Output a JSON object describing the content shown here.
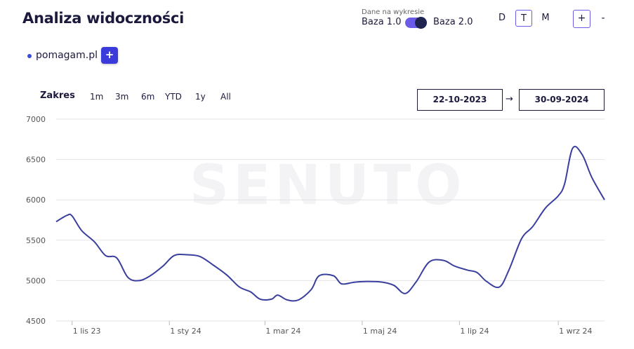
{
  "header": {
    "title": "Analiza widoczności",
    "base_caption": "Dane na wykresie",
    "base_left": "Baza 1.0",
    "base_right": "Baza 2.0",
    "granularity": [
      "D",
      "T",
      "M"
    ],
    "granularity_active": "T",
    "zoom_in": "+",
    "zoom_out": "-"
  },
  "domain": {
    "name": "pomagam.pl",
    "add_label": "+",
    "color": "#3b4bd8"
  },
  "range": {
    "label": "Zakres",
    "buttons": [
      "1m",
      "3m",
      "6m",
      "YTD",
      "1y",
      "All"
    ],
    "date_from": "22-10-2023",
    "date_to": "30-09-2024",
    "arrow": "→"
  },
  "watermark": "SENUTO",
  "chart_data": {
    "type": "line",
    "title": "",
    "xlabel": "",
    "ylabel": "",
    "ylim": [
      4500,
      7000
    ],
    "yticks": [
      4500,
      5000,
      5500,
      6000,
      6500,
      7000
    ],
    "xlim": [
      "2023-10-22",
      "2024-09-30"
    ],
    "xticks": [
      {
        "date": "2023-11-01",
        "label": "1 lis 23"
      },
      {
        "date": "2024-01-01",
        "label": "1 sty 24"
      },
      {
        "date": "2024-03-01",
        "label": "1 mar 24"
      },
      {
        "date": "2024-05-01",
        "label": "1 maj 24"
      },
      {
        "date": "2024-07-01",
        "label": "1 lip 24"
      },
      {
        "date": "2024-09-01",
        "label": "1 wrz 24"
      }
    ],
    "grid": true,
    "series": [
      {
        "color": "#3a3f9e",
        "points": [
          [
            "2023-10-22",
            5730
          ],
          [
            "2023-10-29",
            5810
          ],
          [
            "2023-11-01",
            5800
          ],
          [
            "2023-11-07",
            5620
          ],
          [
            "2023-11-15",
            5480
          ],
          [
            "2023-11-22",
            5310
          ],
          [
            "2023-11-29",
            5280
          ],
          [
            "2023-12-06",
            5040
          ],
          [
            "2023-12-13",
            5000
          ],
          [
            "2023-12-20",
            5060
          ],
          [
            "2023-12-28",
            5180
          ],
          [
            "2024-01-04",
            5310
          ],
          [
            "2024-01-12",
            5320
          ],
          [
            "2024-01-20",
            5300
          ],
          [
            "2024-01-28",
            5200
          ],
          [
            "2024-02-06",
            5070
          ],
          [
            "2024-02-14",
            4920
          ],
          [
            "2024-02-21",
            4860
          ],
          [
            "2024-02-27",
            4770
          ],
          [
            "2024-03-05",
            4770
          ],
          [
            "2024-03-09",
            4820
          ],
          [
            "2024-03-15",
            4760
          ],
          [
            "2024-03-22",
            4760
          ],
          [
            "2024-03-30",
            4890
          ],
          [
            "2024-04-04",
            5060
          ],
          [
            "2024-04-13",
            5060
          ],
          [
            "2024-04-18",
            4960
          ],
          [
            "2024-04-26",
            4980
          ],
          [
            "2024-05-04",
            4990
          ],
          [
            "2024-05-14",
            4980
          ],
          [
            "2024-05-21",
            4940
          ],
          [
            "2024-05-28",
            4840
          ],
          [
            "2024-06-04",
            4990
          ],
          [
            "2024-06-12",
            5230
          ],
          [
            "2024-06-21",
            5250
          ],
          [
            "2024-06-28",
            5180
          ],
          [
            "2024-07-06",
            5130
          ],
          [
            "2024-07-12",
            5100
          ],
          [
            "2024-07-18",
            4990
          ],
          [
            "2024-07-26",
            4920
          ],
          [
            "2024-08-01",
            5130
          ],
          [
            "2024-08-09",
            5520
          ],
          [
            "2024-08-16",
            5670
          ],
          [
            "2024-08-24",
            5900
          ],
          [
            "2024-09-01",
            6050
          ],
          [
            "2024-09-05",
            6200
          ],
          [
            "2024-09-10",
            6640
          ],
          [
            "2024-09-16",
            6560
          ],
          [
            "2024-09-22",
            6280
          ],
          [
            "2024-09-30",
            6000
          ]
        ]
      }
    ]
  }
}
